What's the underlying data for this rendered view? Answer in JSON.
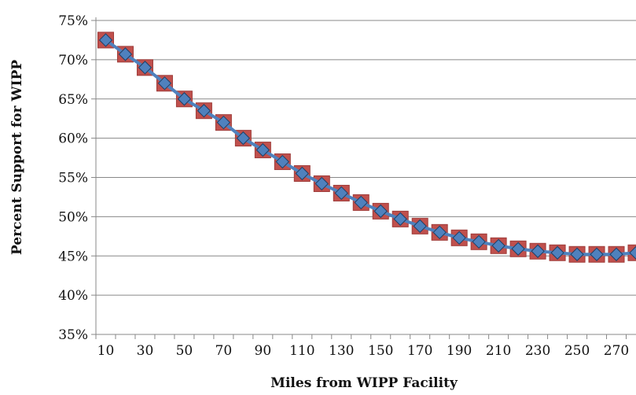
{
  "chart_data": {
    "type": "line",
    "title": "",
    "xlabel": "Miles from WIPP Facility",
    "ylabel": "Percent Support for WIPP",
    "x_ticks": [
      "10",
      "30",
      "50",
      "70",
      "90",
      "110",
      "130",
      "150",
      "170",
      "190",
      "210",
      "230",
      "250",
      "270"
    ],
    "y_ticks": [
      "35%",
      "40%",
      "45%",
      "50%",
      "55%",
      "60%",
      "65%",
      "70%",
      "75%"
    ],
    "x": [
      10,
      20,
      30,
      40,
      50,
      60,
      70,
      80,
      90,
      100,
      110,
      120,
      130,
      140,
      150,
      160,
      170,
      180,
      190,
      200,
      210,
      220,
      230,
      240,
      250,
      260,
      270,
      280
    ],
    "ylim": [
      35,
      75
    ],
    "xlim": [
      5,
      280
    ],
    "grid": true,
    "series": [
      {
        "marker": "square",
        "color": "#C0504D",
        "values": [
          72.5,
          70.7,
          69.0,
          67.0,
          65.0,
          63.5,
          62.0,
          60.0,
          58.5,
          57.0,
          55.5,
          54.2,
          53.0,
          51.8,
          50.7,
          49.7,
          48.8,
          48.0,
          47.3,
          46.8,
          46.3,
          45.9,
          45.6,
          45.4,
          45.2,
          45.2,
          45.2,
          45.4
        ]
      },
      {
        "marker": "diamond",
        "color": "#4F81BD",
        "line_color": "#4F81BD",
        "values": [
          72.5,
          70.7,
          69.0,
          67.0,
          65.0,
          63.5,
          62.0,
          60.0,
          58.5,
          57.0,
          55.5,
          54.2,
          53.0,
          51.8,
          50.7,
          49.7,
          48.8,
          48.0,
          47.3,
          46.8,
          46.3,
          45.9,
          45.6,
          45.4,
          45.2,
          45.2,
          45.2,
          45.4
        ]
      }
    ]
  },
  "colors": {
    "gridline": "#888888",
    "axis": "#888888",
    "square_fill": "#C0504D",
    "square_stroke": "#9E3B38",
    "diamond_fill": "#4F81BD",
    "diamond_stroke": "#1F3F66",
    "line": "#4F81BD"
  }
}
